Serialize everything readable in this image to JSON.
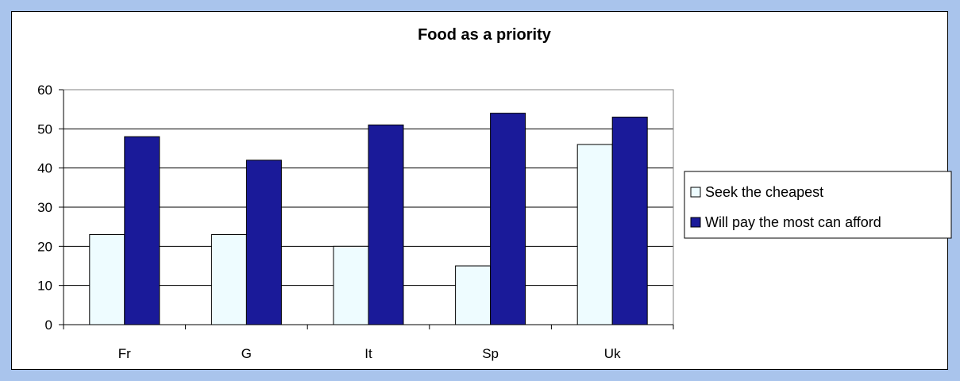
{
  "chart_data": {
    "type": "bar",
    "title": "Food as a priority",
    "xlabel": "",
    "ylabel": "",
    "categories": [
      "Fr",
      "G",
      "It",
      "Sp",
      "Uk"
    ],
    "series": [
      {
        "name": "Seek the cheapest",
        "values": [
          23,
          23,
          20,
          15,
          46
        ],
        "color": "#eefcff"
      },
      {
        "name": "Will pay the most can afford",
        "values": [
          48,
          42,
          51,
          54,
          53
        ],
        "color": "#1a1a99"
      }
    ],
    "ylim": [
      0,
      60
    ],
    "yticks": [
      "0",
      "10",
      "20",
      "30",
      "40",
      "50",
      "60"
    ],
    "grid": true,
    "legend": "right"
  },
  "colors": {
    "page_background": "#a9c4ec",
    "plot_border": "#808080"
  }
}
